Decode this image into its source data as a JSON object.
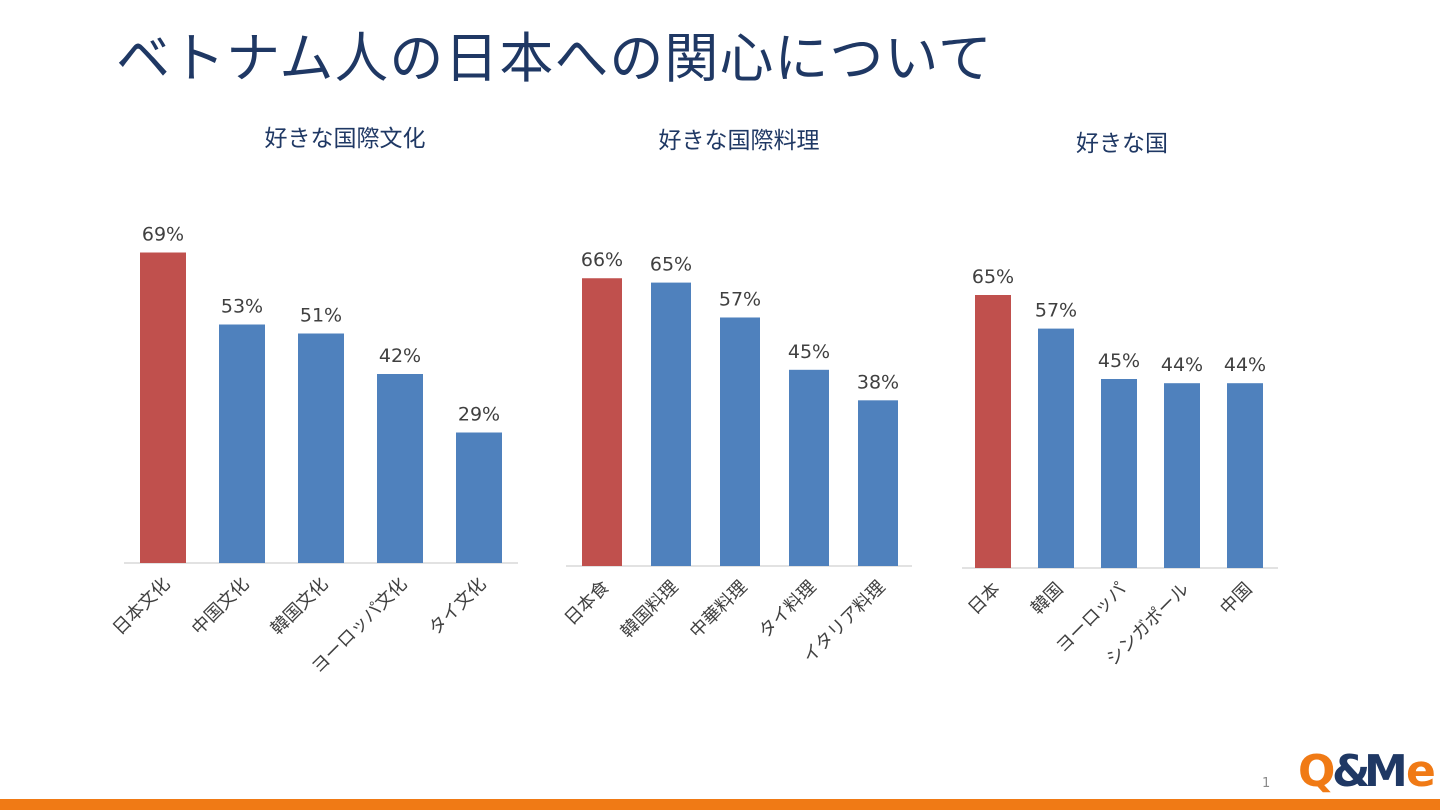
{
  "slide": {
    "title": "ベトナム人の日本への関心について",
    "page_number": "1",
    "logo_text": "Q&Me"
  },
  "colors": {
    "highlight": "#c0504d",
    "bar": "#4f81bd",
    "title": "#1f3864",
    "accent_bar": "#f07a15"
  },
  "chart_data": [
    {
      "type": "bar",
      "title": "好きな国際文化",
      "categories": [
        "日本文化",
        "中国文化",
        "韓国文化",
        "ヨーロッパ文化",
        "タイ文化"
      ],
      "values": [
        69,
        53,
        51,
        42,
        29
      ],
      "value_labels": [
        "69%",
        "53%",
        "51%",
        "42%",
        "29%"
      ],
      "highlight_index": 0,
      "ylim": [
        0,
        100
      ],
      "grid": false,
      "legend": "none"
    },
    {
      "type": "bar",
      "title": "好きな国際料理",
      "categories": [
        "日本食",
        "韓国料理",
        "中華料理",
        "タイ料理",
        "イタリア料理"
      ],
      "values": [
        66,
        65,
        57,
        45,
        38
      ],
      "value_labels": [
        "66%",
        "65%",
        "57%",
        "45%",
        "38%"
      ],
      "highlight_index": 0,
      "ylim": [
        0,
        100
      ],
      "grid": false,
      "legend": "none"
    },
    {
      "type": "bar",
      "title": "好きな国",
      "categories": [
        "日本",
        "韓国",
        "ヨーロッパ",
        "シンガポール",
        "中国"
      ],
      "values": [
        65,
        57,
        45,
        44,
        44
      ],
      "value_labels": [
        "65%",
        "57%",
        "45%",
        "44%",
        "44%"
      ],
      "highlight_index": 0,
      "ylim": [
        0,
        100
      ],
      "grid": false,
      "legend": "none"
    }
  ]
}
